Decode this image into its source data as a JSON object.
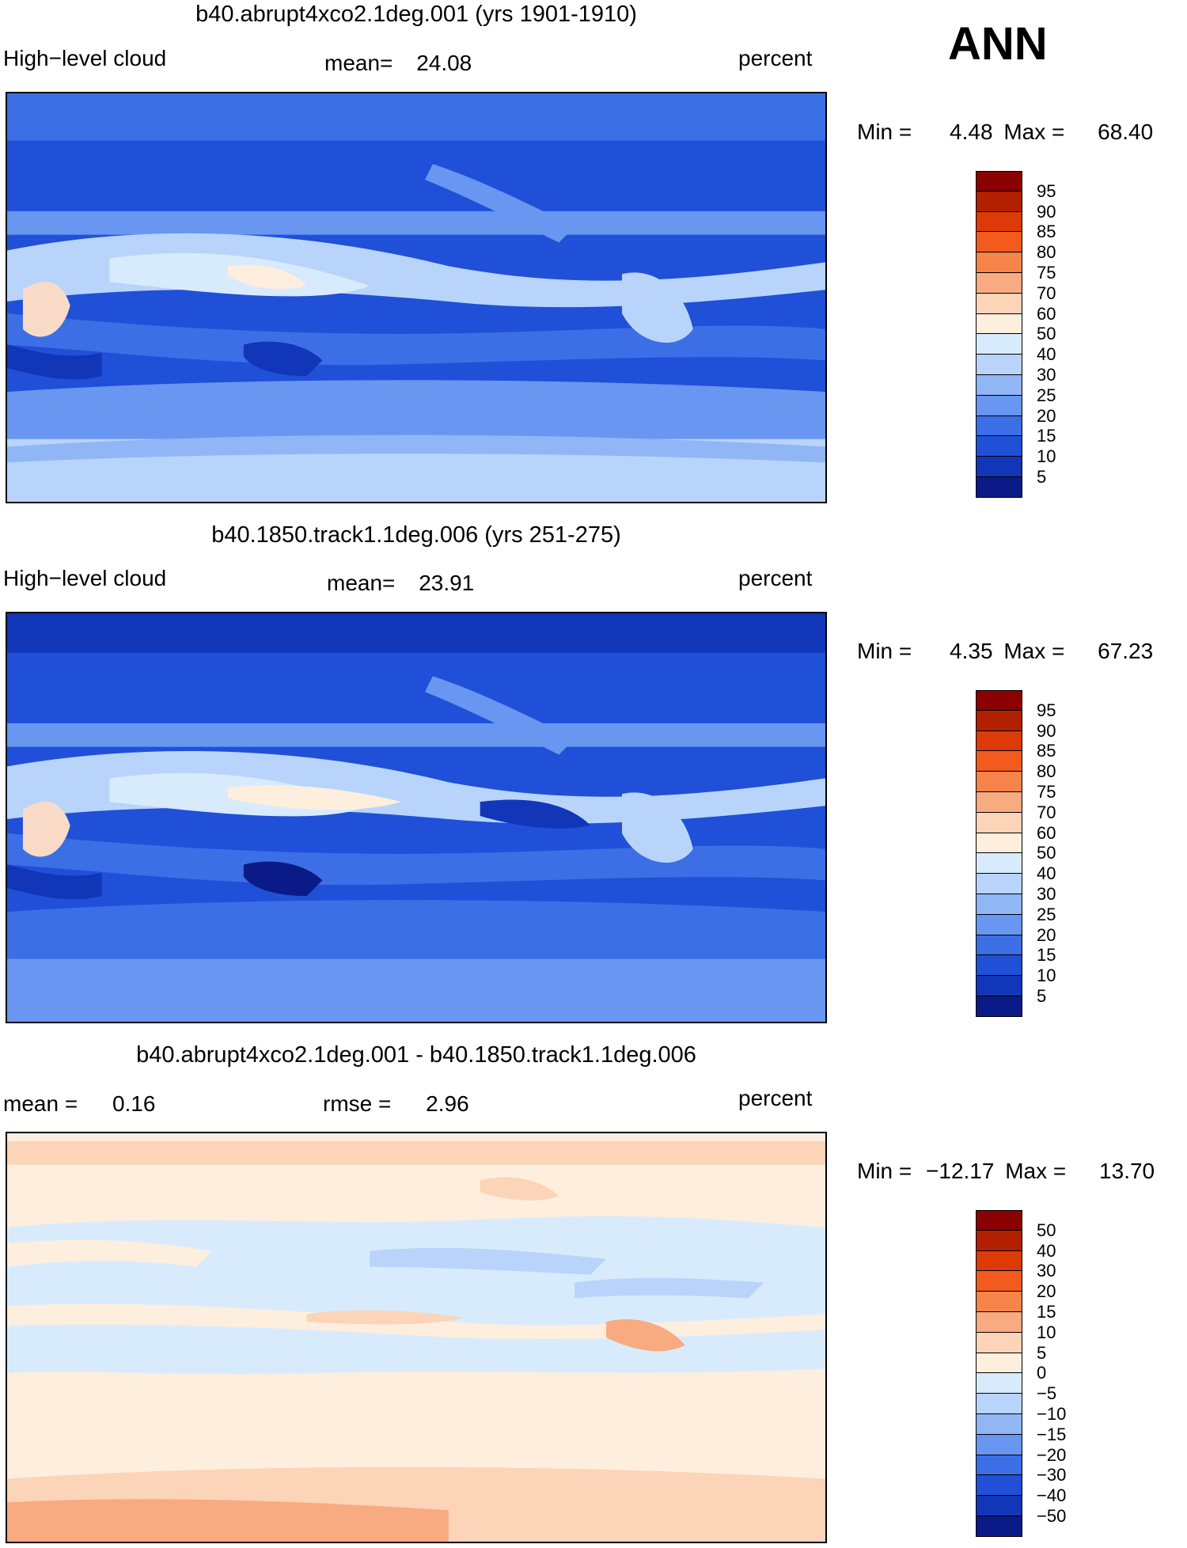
{
  "season": "ANN",
  "units_label": "percent",
  "panels": [
    {
      "title": "b40.abrupt4xco2.1deg.001 (yrs 1901-1910)",
      "left_label": "High−level cloud",
      "stat_label": "mean=",
      "stat_value": "24.08",
      "min_label": "Min =",
      "min_value": "4.48",
      "max_label": "Max =",
      "max_value": "68.40",
      "colorbar": {
        "levels": [
          "95",
          "90",
          "85",
          "80",
          "75",
          "70",
          "60",
          "50",
          "40",
          "30",
          "25",
          "20",
          "15",
          "10",
          "5"
        ],
        "colors": [
          "#8b0000",
          "#b22000",
          "#dd3a08",
          "#f25a1e",
          "#f6834a",
          "#f8aa80",
          "#fcd4b8",
          "#feeede",
          "#d8ebfc",
          "#b8d4fa",
          "#90b6f5",
          "#6896f0",
          "#3c6fe6",
          "#2050d8",
          "#1236b8",
          "#0a1b88"
        ]
      }
    },
    {
      "title": "b40.1850.track1.1deg.006 (yrs 251-275)",
      "left_label": "High−level cloud",
      "stat_label": "mean=",
      "stat_value": "23.91",
      "min_label": "Min =",
      "min_value": "4.35",
      "max_label": "Max =",
      "max_value": "67.23",
      "colorbar": {
        "levels": [
          "95",
          "90",
          "85",
          "80",
          "75",
          "70",
          "60",
          "50",
          "40",
          "30",
          "25",
          "20",
          "15",
          "10",
          "5"
        ],
        "colors": [
          "#8b0000",
          "#b22000",
          "#dd3a08",
          "#f25a1e",
          "#f6834a",
          "#f8aa80",
          "#fcd4b8",
          "#feeede",
          "#d8ebfc",
          "#b8d4fa",
          "#90b6f5",
          "#6896f0",
          "#3c6fe6",
          "#2050d8",
          "#1236b8",
          "#0a1b88"
        ]
      }
    },
    {
      "title": "b40.abrupt4xco2.1deg.001 - b40.1850.track1.1deg.006",
      "left_label": "mean =",
      "left_value": "0.16",
      "stat_label": "rmse =",
      "stat_value": "2.96",
      "min_label": "Min =",
      "min_value": "−12.17",
      "max_label": "Max =",
      "max_value": "13.70",
      "colorbar": {
        "levels": [
          "50",
          "40",
          "30",
          "20",
          "15",
          "10",
          "5",
          "0",
          "−5",
          "−10",
          "−15",
          "−20",
          "−30",
          "−40",
          "−50"
        ],
        "colors": [
          "#8b0000",
          "#b22000",
          "#dd3a08",
          "#f25a1e",
          "#f6834a",
          "#f8aa80",
          "#fcd4b8",
          "#feeede",
          "#d8ebfc",
          "#b8d4fa",
          "#90b6f5",
          "#6896f0",
          "#3c6fe6",
          "#2050d8",
          "#1236b8",
          "#0a1b88"
        ]
      }
    }
  ]
}
